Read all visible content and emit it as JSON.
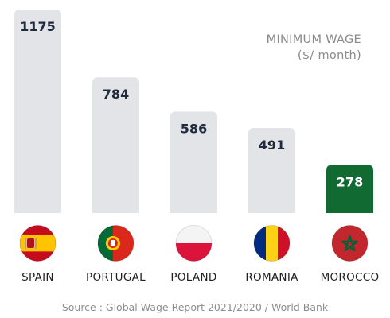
{
  "chart_data": {
    "type": "bar",
    "title": "MINIMUM WAGE",
    "subtitle": "($/ month)",
    "categories": [
      "SPAIN",
      "PORTUGAL",
      "POLAND",
      "ROMANIA",
      "MOROCCO"
    ],
    "values": [
      1175,
      784,
      586,
      491,
      278
    ],
    "data_labels": [
      "1175",
      "784",
      "586",
      "491",
      "278"
    ],
    "ylim": [
      0,
      1175
    ],
    "grid": false,
    "bar_color": "#e3e4e8",
    "highlight_category": "MOROCCO",
    "highlight_color": "#116a32",
    "label_color": "#1f2a3c",
    "highlight_label_color": "#ffffff"
  },
  "flags": [
    {
      "country": "SPAIN",
      "icon": "spain-flag-icon",
      "colors": [
        "#c60b1e",
        "#ffc400",
        "#c60b1e"
      ]
    },
    {
      "country": "PORTUGAL",
      "icon": "portugal-flag-icon",
      "colors": [
        "#046a38",
        "#da291c",
        "#ffcc00"
      ]
    },
    {
      "country": "POLAND",
      "icon": "poland-flag-icon",
      "colors": [
        "#f4f4f4",
        "#dc143c"
      ]
    },
    {
      "country": "ROMANIA",
      "icon": "romania-flag-icon",
      "colors": [
        "#002b7f",
        "#fcd116",
        "#ce1126"
      ]
    },
    {
      "country": "MOROCCO",
      "icon": "morocco-flag-icon",
      "colors": [
        "#c1272d",
        "#006233"
      ]
    }
  ],
  "source": "Source : Global Wage Report  2021/2020 / World Bank"
}
